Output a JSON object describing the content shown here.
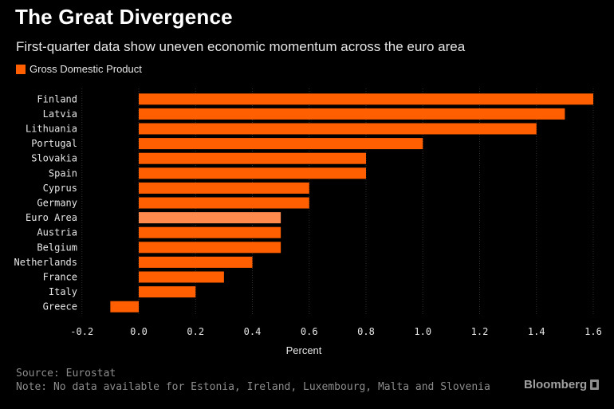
{
  "colors": {
    "background": "#000000",
    "bar": "#ff5f00",
    "highlight_bar": "#ff8a4d",
    "axis_text": "#e6e6e6",
    "muted_text": "#8c8c8c"
  },
  "header": {
    "title": "The Great Divergence",
    "subtitle": "First-quarter data show uneven economic momentum across the euro area"
  },
  "legend": {
    "label": "Gross Domestic Product"
  },
  "footer": {
    "source": "Source: Eurostat",
    "note": "Note: No data available for Estonia, Ireland, Luxembourg, Malta and Slovenia",
    "brand": "Bloomberg"
  },
  "chart_data": {
    "type": "bar",
    "orientation": "horizontal",
    "categories": [
      "Finland",
      "Latvia",
      "Lithuania",
      "Portugal",
      "Slovakia",
      "Spain",
      "Cyprus",
      "Germany",
      "Euro Area",
      "Austria",
      "Belgium",
      "Netherlands",
      "France",
      "Italy",
      "Greece"
    ],
    "values": [
      1.6,
      1.5,
      1.4,
      1.0,
      0.8,
      0.8,
      0.6,
      0.6,
      0.5,
      0.5,
      0.5,
      0.4,
      0.3,
      0.2,
      -0.1
    ],
    "highlight": "Euro Area",
    "series_name": "Gross Domestic Product",
    "xlabel": "Percent",
    "xlim": [
      -0.2,
      1.6
    ],
    "xticks": [
      -0.2,
      0.0,
      0.2,
      0.4,
      0.6,
      0.8,
      1.0,
      1.2,
      1.4,
      1.6
    ],
    "xtick_labels": [
      "-0.2",
      "0.0",
      "0.2",
      "0.4",
      "0.6",
      "0.8",
      "1.0",
      "1.2",
      "1.4",
      "1.6"
    ],
    "grid": "vertical",
    "legend_position": "top-left"
  }
}
